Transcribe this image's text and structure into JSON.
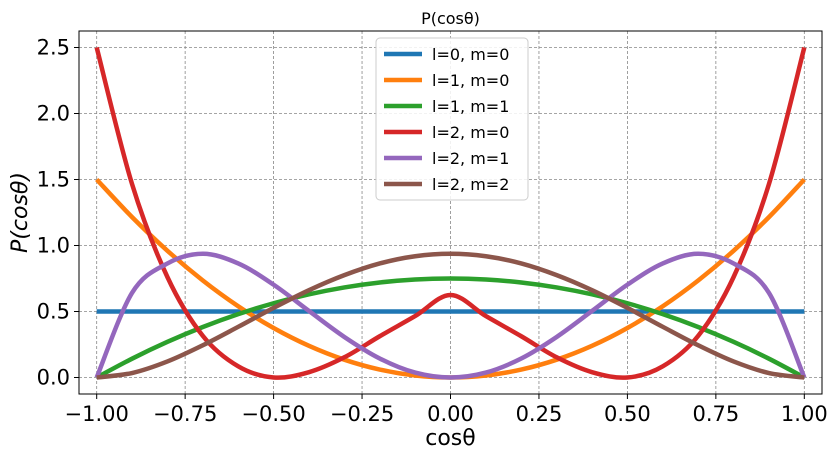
{
  "chart_data": {
    "type": "line",
    "title": "P(cosθ)",
    "xlabel": "cosθ",
    "ylabel": "P(cosθ)",
    "xlim": [
      -1.05,
      1.05
    ],
    "ylim": [
      -0.125,
      2.625
    ],
    "grid": true,
    "legend_position": "top-center",
    "x_ticks": [
      -1.0,
      -0.75,
      -0.5,
      -0.25,
      0.0,
      0.25,
      0.5,
      0.75,
      1.0
    ],
    "x_tick_labels": [
      "−1.00",
      "−0.75",
      "−0.50",
      "−0.25",
      "0.00",
      "0.25",
      "0.50",
      "0.75",
      "1.00"
    ],
    "y_ticks": [
      0.0,
      0.5,
      1.0,
      1.5,
      2.0,
      2.5
    ],
    "y_tick_labels": [
      "0.0",
      "0.5",
      "1.0",
      "1.5",
      "2.0",
      "2.5"
    ],
    "x": [
      -1.0,
      -0.9,
      -0.8,
      -0.7,
      -0.6,
      -0.5,
      -0.4,
      -0.3,
      -0.2,
      -0.1,
      0.0,
      0.1,
      0.2,
      0.3,
      0.4,
      0.5,
      0.6,
      0.7,
      0.8,
      0.9,
      1.0
    ],
    "series": [
      {
        "name": "l=0, m=0",
        "color": "#1f77b4",
        "values": [
          0.5,
          0.5,
          0.5,
          0.5,
          0.5,
          0.5,
          0.5,
          0.5,
          0.5,
          0.5,
          0.5,
          0.5,
          0.5,
          0.5,
          0.5,
          0.5,
          0.5,
          0.5,
          0.5,
          0.5,
          0.5
        ]
      },
      {
        "name": "l=1, m=0",
        "color": "#ff7f0e",
        "values": [
          1.5,
          1.215,
          0.96,
          0.735,
          0.54,
          0.375,
          0.24,
          0.135,
          0.06,
          0.015,
          0.0,
          0.015,
          0.06,
          0.135,
          0.24,
          0.375,
          0.54,
          0.735,
          0.96,
          1.215,
          1.5
        ]
      },
      {
        "name": "l=1, m=1",
        "color": "#2ca02c",
        "values": [
          0.0,
          0.1425,
          0.27,
          0.3825,
          0.48,
          0.5625,
          0.63,
          0.6825,
          0.72,
          0.7425,
          0.75,
          0.7425,
          0.72,
          0.6825,
          0.63,
          0.5625,
          0.48,
          0.3825,
          0.27,
          0.1425,
          0.0
        ]
      },
      {
        "name": "l=2, m=0",
        "color": "#d62728",
        "values": [
          2.5,
          1.4651,
          0.7605,
          0.3151,
          0.0845,
          0.0,
          0.0405,
          0.1531,
          0.3125,
          0.4651,
          0.625,
          0.4651,
          0.3125,
          0.1531,
          0.0405,
          0.0,
          0.0845,
          0.3151,
          0.7605,
          1.4651,
          2.5
        ]
      },
      {
        "name": "l=2, m=1",
        "color": "#9467bd",
        "values": [
          0.0,
          0.6413,
          0.864,
          0.9371,
          0.864,
          0.7031,
          0.504,
          0.3071,
          0.144,
          0.0371,
          0.0,
          0.0371,
          0.144,
          0.3071,
          0.504,
          0.7031,
          0.864,
          0.9371,
          0.864,
          0.6413,
          0.0
        ]
      },
      {
        "name": "l=2, m=2",
        "color": "#8c564b",
        "values": [
          0.0,
          0.0338,
          0.1215,
          0.2442,
          0.384,
          0.5273,
          0.6615,
          0.7755,
          0.864,
          0.9188,
          0.9375,
          0.9188,
          0.864,
          0.7755,
          0.6615,
          0.5273,
          0.384,
          0.2442,
          0.1215,
          0.0338,
          0.0
        ]
      }
    ]
  }
}
